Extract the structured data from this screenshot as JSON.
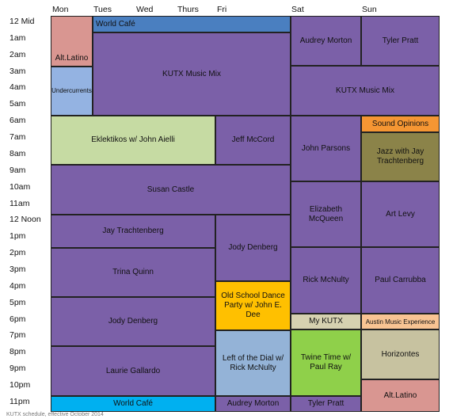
{
  "days": [
    "Mon",
    "Tues",
    "Wed",
    "Thurs",
    "Fri",
    "Sat",
    "Sun"
  ],
  "hours": [
    "12 Mid",
    "1am",
    "2am",
    "3am",
    "4am",
    "5am",
    "6am",
    "7am",
    "8am",
    "9am",
    "10am",
    "11am",
    "12 Noon",
    "1pm",
    "2pm",
    "3pm",
    "4pm",
    "5pm",
    "6pm",
    "7pm",
    "8pm",
    "9pm",
    "10pm",
    "11pm"
  ],
  "colors": {
    "purple": "#7b60a8",
    "blue": "#4a7fc0",
    "pink": "#d99691",
    "light_blue": "#94b3e2",
    "light_green": "#c6dba3",
    "orange": "#f59633",
    "olive": "#8b8349",
    "yellow": "#ffc000",
    "steel_blue": "#94b3d7",
    "bright_green": "#8fd04a",
    "sky": "#00b0f0",
    "peach": "#f8c493",
    "tan": "#d6d1b0",
    "gray_tan": "#c7c2a0"
  },
  "blocks": [
    {
      "id": "alt-latino-mon",
      "label": "Alt.Latino",
      "color": "pink"
    },
    {
      "id": "world-cafe-top",
      "label": "World Café",
      "color": "blue"
    },
    {
      "id": "kutx-weekday",
      "label": "KUTX Music Mix",
      "color": "purple"
    },
    {
      "id": "undercurrents",
      "label": "Undercurrents",
      "color": "light_blue"
    },
    {
      "id": "eklektikos",
      "label": "Eklektikos w/ John Aielli",
      "color": "light_green"
    },
    {
      "id": "jeff-mccord",
      "label": "Jeff McCord",
      "color": "purple"
    },
    {
      "id": "susan-castle",
      "label": "Susan Castle",
      "color": "purple"
    },
    {
      "id": "jay-trachtenberg-wk",
      "label": "Jay Trachtenberg",
      "color": "purple"
    },
    {
      "id": "jody-denberg-fri",
      "label": "Jody Denberg",
      "color": "purple"
    },
    {
      "id": "trina-quinn",
      "label": "Trina Quinn",
      "color": "purple"
    },
    {
      "id": "old-school-dance",
      "label": "Old School Dance Party w/ John E. Dee",
      "color": "yellow"
    },
    {
      "id": "jody-denberg-wk",
      "label": "Jody Denberg",
      "color": "purple"
    },
    {
      "id": "left-of-the-dial",
      "label": "Left of the Dial w/ Rick McNulty",
      "color": "steel_blue"
    },
    {
      "id": "laurie-gallardo",
      "label": "Laurie Gallardo",
      "color": "purple"
    },
    {
      "id": "world-cafe-bottom",
      "label": "World Café",
      "color": "sky"
    },
    {
      "id": "audrey-morton-fri",
      "label": "Audrey Morton",
      "color": "purple"
    },
    {
      "id": "audrey-morton-sat",
      "label": "Audrey Morton",
      "color": "purple"
    },
    {
      "id": "tyler-pratt-sun",
      "label": "Tyler Pratt",
      "color": "purple"
    },
    {
      "id": "kutx-weekend",
      "label": "KUTX Music Mix",
      "color": "purple"
    },
    {
      "id": "sound-opinions",
      "label": "Sound Opinions",
      "color": "orange"
    },
    {
      "id": "john-parsons",
      "label": "John Parsons",
      "color": "purple"
    },
    {
      "id": "jazz-jay",
      "label": "Jazz with Jay Trachtenberg",
      "color": "olive"
    },
    {
      "id": "elizabeth-mcqueen",
      "label": "Elizabeth McQueen",
      "color": "purple"
    },
    {
      "id": "art-levy",
      "label": "Art Levy",
      "color": "purple"
    },
    {
      "id": "rick-mcnulty",
      "label": "Rick McNulty",
      "color": "purple"
    },
    {
      "id": "paul-carrubba",
      "label": "Paul Carrubba",
      "color": "purple"
    },
    {
      "id": "my-kutx",
      "label": "My KUTX",
      "color": "tan"
    },
    {
      "id": "austin-music-experience",
      "label": "Austin Music Experience",
      "color": "peach"
    },
    {
      "id": "twine-time",
      "label": "Twine Time w/ Paul Ray",
      "color": "bright_green"
    },
    {
      "id": "horizontes",
      "label": "Horizontes",
      "color": "gray_tan"
    },
    {
      "id": "alt-latino-sun",
      "label": "Alt.Latino",
      "color": "pink"
    },
    {
      "id": "tyler-pratt-sat",
      "label": "Tyler Pratt",
      "color": "purple"
    }
  ],
  "footnote": "KUTX schedule, effective October 2014"
}
